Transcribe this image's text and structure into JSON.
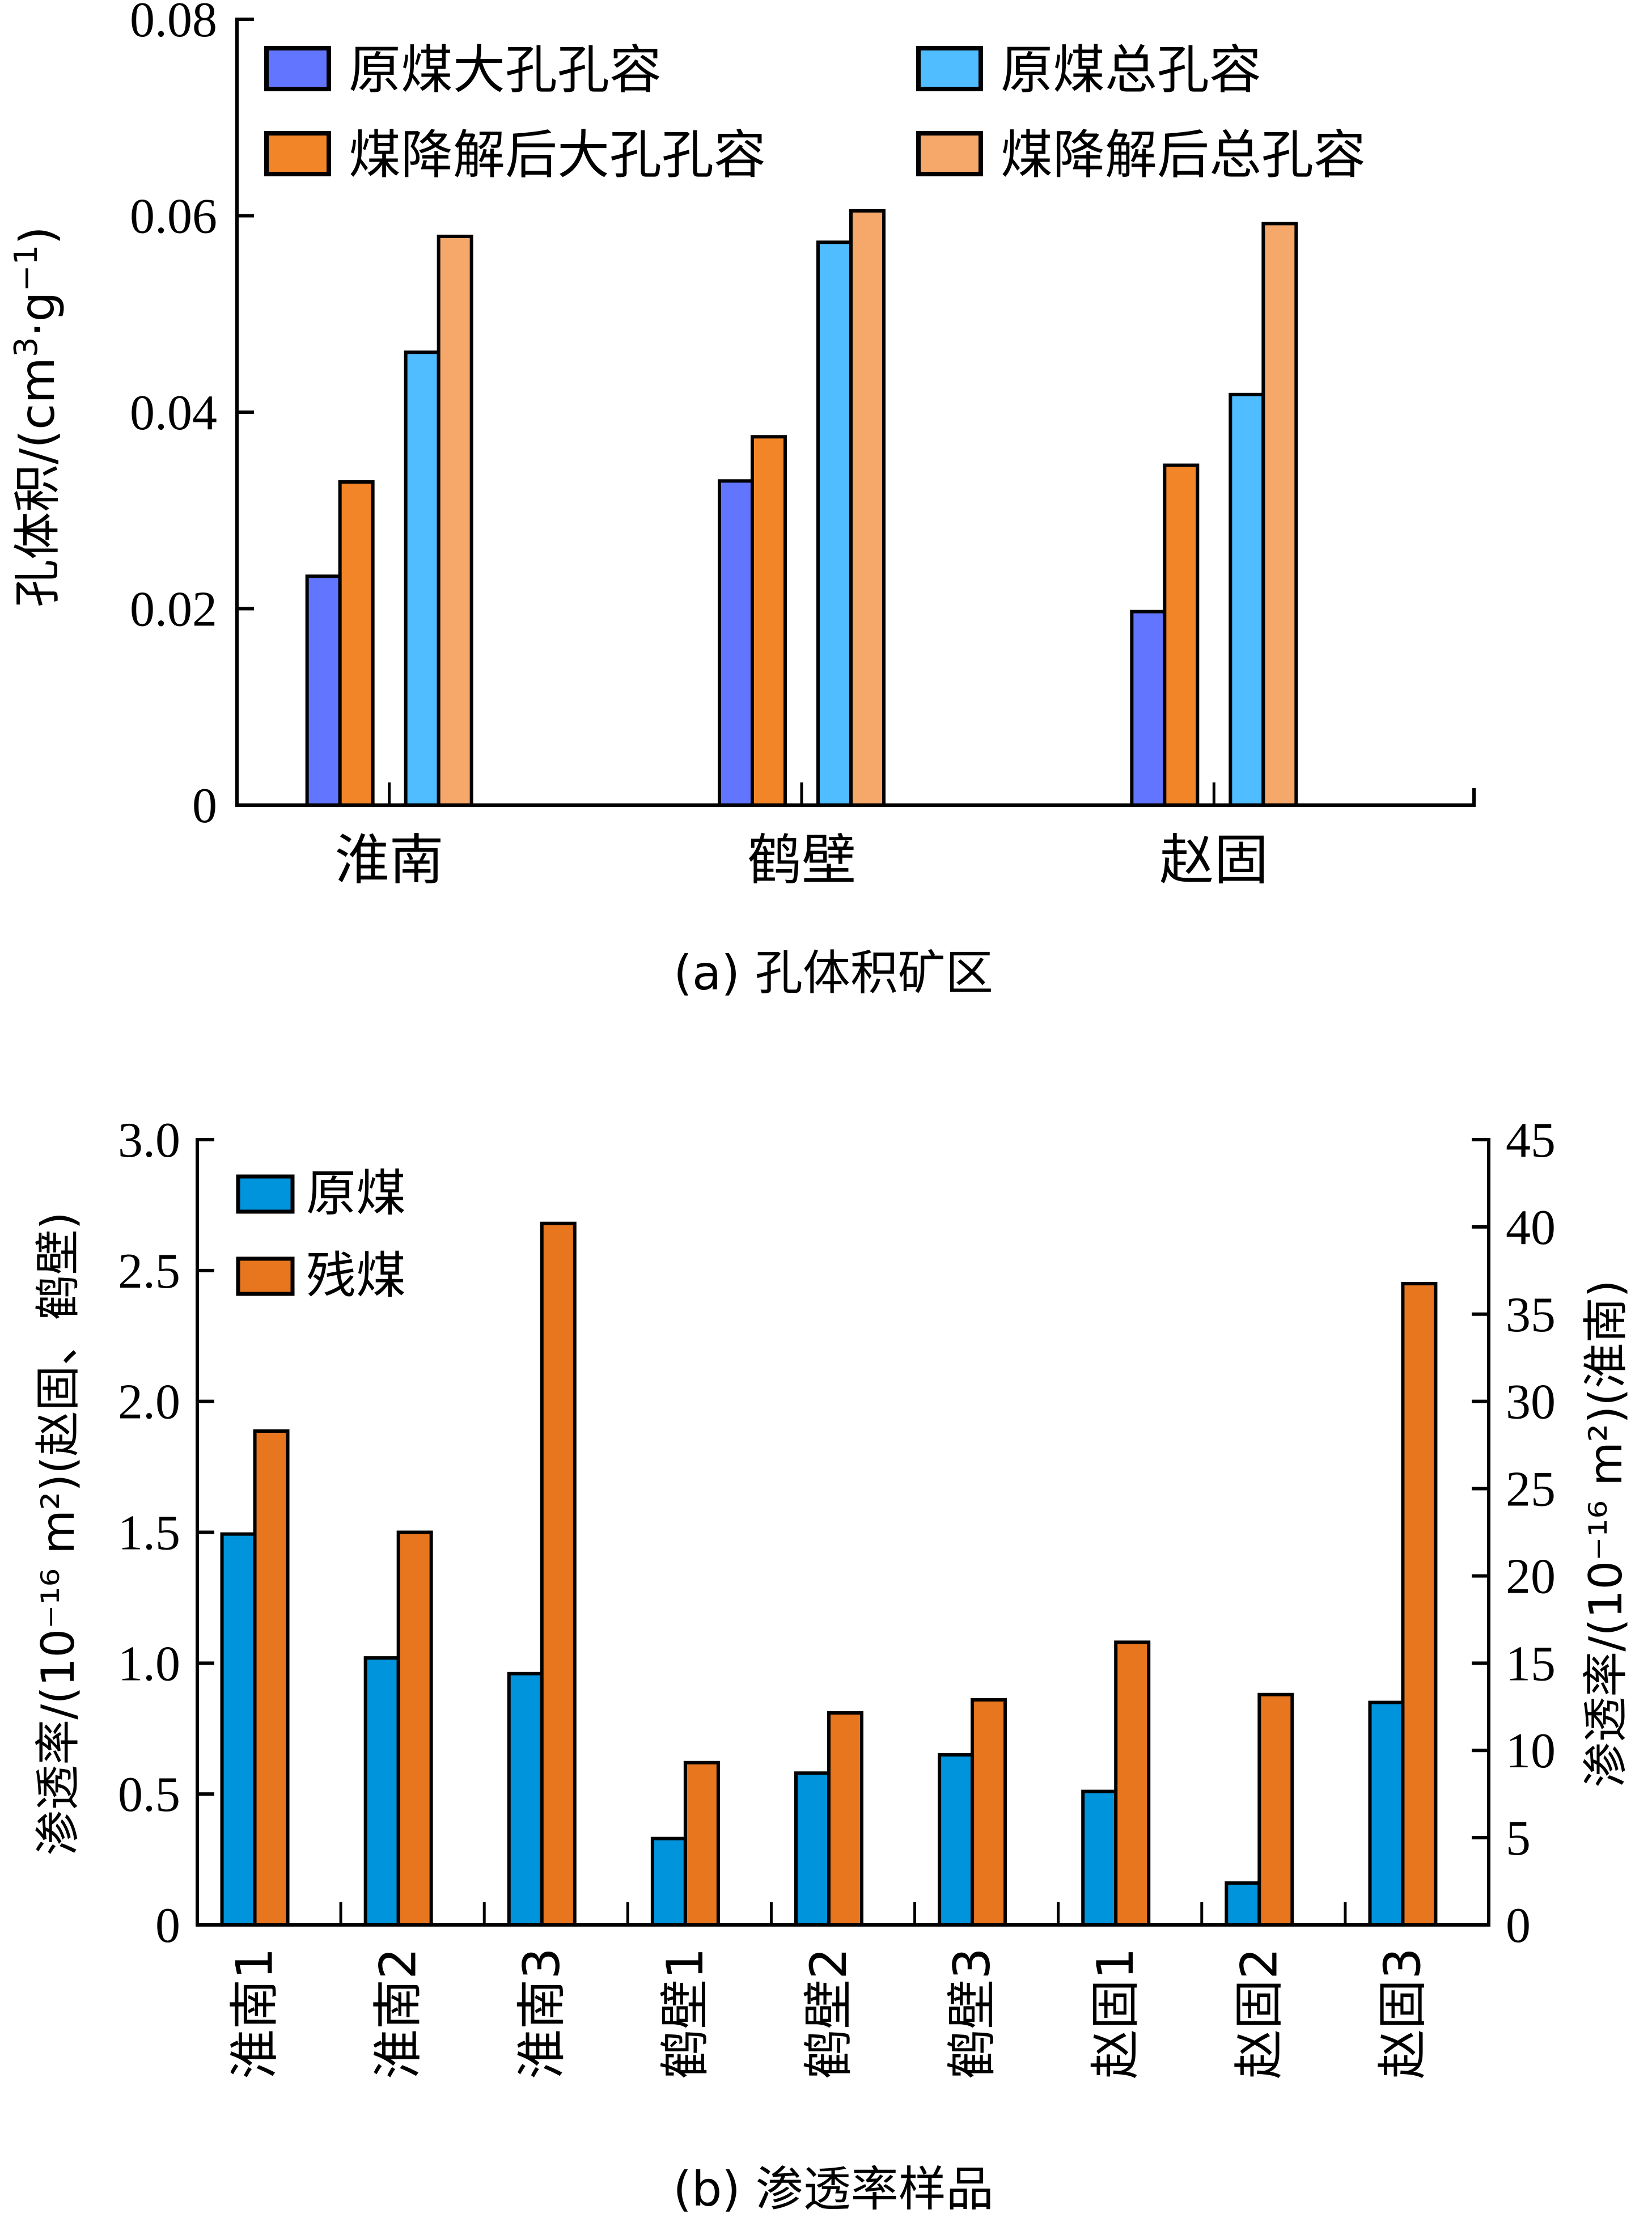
{
  "chart_data": [
    {
      "id": "a",
      "type": "bar",
      "caption": "(a) 孔体积矿区",
      "title": "",
      "xlabel": "",
      "ylabel": "孔体积/(cm³·g⁻¹)",
      "ylabel_parts": {
        "main": "孔体积/(cm",
        "sup1": "3",
        "mid": "·g",
        "sup2": "−1",
        "end": ")"
      },
      "ylim": [
        0,
        0.08
      ],
      "yticks": [
        0,
        0.02,
        0.04,
        0.06,
        0.08
      ],
      "ytick_labels": [
        "0",
        "0.02",
        "0.04",
        "0.06",
        "0.08"
      ],
      "grid": false,
      "legend_position": "top-left",
      "categories": [
        "淮南",
        "鹤壁",
        "赵固"
      ],
      "series": [
        {
          "name": "原煤大孔孔容",
          "color": "#6275FF",
          "values": [
            0.0233,
            0.033,
            0.0197
          ]
        },
        {
          "name": "煤降解后大孔孔容",
          "color": "#F28528",
          "values": [
            0.0329,
            0.0375,
            0.0346
          ]
        },
        {
          "name": "原煤总孔容",
          "color": "#4FBDFF",
          "values": [
            0.0461,
            0.0573,
            0.0418
          ]
        },
        {
          "name": "煤降解后总孔容",
          "color": "#F5A86A",
          "values": [
            0.0579,
            0.0605,
            0.0592
          ]
        }
      ],
      "legend_order": [
        0,
        2,
        1,
        3
      ]
    },
    {
      "id": "b",
      "type": "bar",
      "caption": "(b) 渗透率样品",
      "title": "",
      "xlabel": "",
      "ylabel_left": "渗透率/(10⁻¹⁶ m²)(赵固、鹤壁)",
      "ylabel_right": "渗透率/(10⁻¹⁶ m²)(淮南)",
      "ylim_left": [
        0,
        3.0
      ],
      "ylim_right": [
        0,
        45
      ],
      "yticks_left": [
        0,
        0.5,
        1.0,
        1.5,
        2.0,
        2.5,
        3.0
      ],
      "ytick_labels_left": [
        "0",
        "0.5",
        "1.0",
        "1.5",
        "2.0",
        "2.5",
        "3.0"
      ],
      "yticks_right": [
        0,
        5,
        10,
        15,
        20,
        25,
        30,
        35,
        40,
        45
      ],
      "ytick_labels_right": [
        "0",
        "5",
        "10",
        "15",
        "20",
        "25",
        "30",
        "35",
        "40",
        "45"
      ],
      "grid": false,
      "legend_position": "top-left",
      "categories": [
        "淮南1",
        "淮南2",
        "淮南3",
        "鹤壁1",
        "鹤壁2",
        "鹤壁3",
        "赵固1",
        "赵固2",
        "赵固3"
      ],
      "axis_assignment": [
        "right",
        "right",
        "right",
        "left",
        "left",
        "left",
        "left",
        "left",
        "left"
      ],
      "series": [
        {
          "name": "原煤",
          "color": "#0094DC",
          "values": [
            22.4,
            15.3,
            14.4,
            0.33,
            0.58,
            0.65,
            0.51,
            0.16,
            0.85
          ]
        },
        {
          "name": "残煤",
          "color": "#E8761E",
          "values": [
            28.3,
            22.5,
            40.2,
            0.62,
            0.81,
            0.86,
            1.08,
            0.88,
            2.45
          ]
        }
      ]
    }
  ]
}
